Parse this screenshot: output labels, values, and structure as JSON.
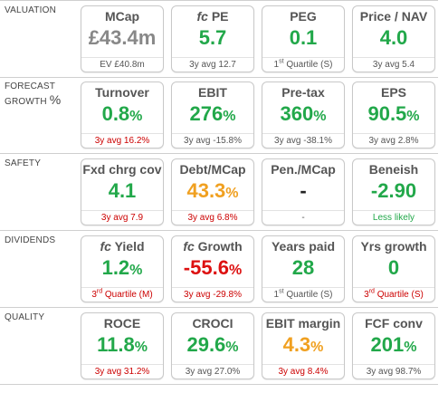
{
  "sections": [
    {
      "label_lines": [
        "VALUATION"
      ],
      "cards": [
        {
          "title": "MCap",
          "value": "£43.4m",
          "unit": "",
          "value_color": "#888888",
          "sub": "EV £40.8m",
          "sub_color": "#555555"
        },
        {
          "title_prefix": "fc",
          "title": "PE",
          "value": "5.7",
          "unit": "",
          "value_color": "#22a84a",
          "sub": "3y avg 12.7",
          "sub_color": "#555555"
        },
        {
          "title": "PEG",
          "value": "0.1",
          "unit": "",
          "value_color": "#22a84a",
          "sub_pre": "1",
          "sub_sup": "st",
          "sub": "Quartile (S)",
          "sub_color": "#555555"
        },
        {
          "title": "Price / NAV",
          "value": "4.0",
          "unit": "",
          "value_color": "#22a84a",
          "sub": "3y avg 5.4",
          "sub_color": "#555555"
        }
      ]
    },
    {
      "label_lines": [
        "FORECAST",
        "GROWTH"
      ],
      "label_suffix": "%",
      "cards": [
        {
          "title": "Turnover",
          "value": "0.8",
          "unit": "%",
          "value_color": "#22a84a",
          "sub": "3y avg 16.2%",
          "sub_color": "#cc0000"
        },
        {
          "title": "EBIT",
          "value": "276",
          "unit": "%",
          "value_color": "#22a84a",
          "sub": "3y avg -15.8%",
          "sub_color": "#555555"
        },
        {
          "title": "Pre-tax",
          "value": "360",
          "unit": "%",
          "value_color": "#22a84a",
          "sub": "3y avg -38.1%",
          "sub_color": "#555555"
        },
        {
          "title": "EPS",
          "value": "90.5",
          "unit": "%",
          "value_color": "#22a84a",
          "sub": "3y avg 2.8%",
          "sub_color": "#555555"
        }
      ]
    },
    {
      "label_lines": [
        "SAFETY"
      ],
      "cards": [
        {
          "title": "Fxd chrg cov",
          "value": "4.1",
          "unit": "",
          "value_color": "#22a84a",
          "sub": "3y avg 7.9",
          "sub_color": "#cc0000"
        },
        {
          "title": "Debt/MCap",
          "value": "43.3",
          "unit": "%",
          "value_color": "#f0a020",
          "sub": "3y avg 6.8%",
          "sub_color": "#cc0000"
        },
        {
          "title": "Pen./MCap",
          "value": "-",
          "unit": "",
          "value_color": "#222222",
          "sub": "-",
          "sub_color": "#555555"
        },
        {
          "title": "Beneish",
          "value": "-2.90",
          "unit": "",
          "value_color": "#22a84a",
          "sub": "Less likely",
          "sub_color": "#22a84a"
        }
      ]
    },
    {
      "label_lines": [
        "DIVIDENDS"
      ],
      "cards": [
        {
          "title_prefix": "fc",
          "title": "Yield",
          "value": "1.2",
          "unit": "%",
          "value_color": "#22a84a",
          "sub_pre": "3",
          "sub_sup": "rd",
          "sub": "Quartile (M)",
          "sub_color": "#cc0000"
        },
        {
          "title_prefix": "fc",
          "title": "Growth",
          "value": "-55.6",
          "unit": "%",
          "value_color": "#dd1111",
          "sub": "3y avg -29.8%",
          "sub_color": "#cc0000"
        },
        {
          "title": "Years paid",
          "value": "28",
          "unit": "",
          "value_color": "#22a84a",
          "sub_pre": "1",
          "sub_sup": "st",
          "sub": "Quartile (S)",
          "sub_color": "#555555"
        },
        {
          "title": "Yrs growth",
          "value": "0",
          "unit": "",
          "value_color": "#22a84a",
          "sub_pre": "3",
          "sub_sup": "rd",
          "sub": "Quartile (S)",
          "sub_color": "#cc0000"
        }
      ]
    },
    {
      "label_lines": [
        "QUALITY"
      ],
      "cards": [
        {
          "title": "ROCE",
          "value": "11.8",
          "unit": "%",
          "value_color": "#22a84a",
          "sub": "3y avg 31.2%",
          "sub_color": "#cc0000"
        },
        {
          "title": "CROCI",
          "value": "29.6",
          "unit": "%",
          "value_color": "#22a84a",
          "sub": "3y avg 27.0%",
          "sub_color": "#555555"
        },
        {
          "title": "EBIT margin",
          "value": "4.3",
          "unit": "%",
          "value_color": "#f0a020",
          "sub": "3y avg 8.4%",
          "sub_color": "#cc0000"
        },
        {
          "title": "FCF conv",
          "value": "201",
          "unit": "%",
          "value_color": "#22a84a",
          "sub": "3y avg 98.7%",
          "sub_color": "#555555"
        }
      ]
    }
  ]
}
